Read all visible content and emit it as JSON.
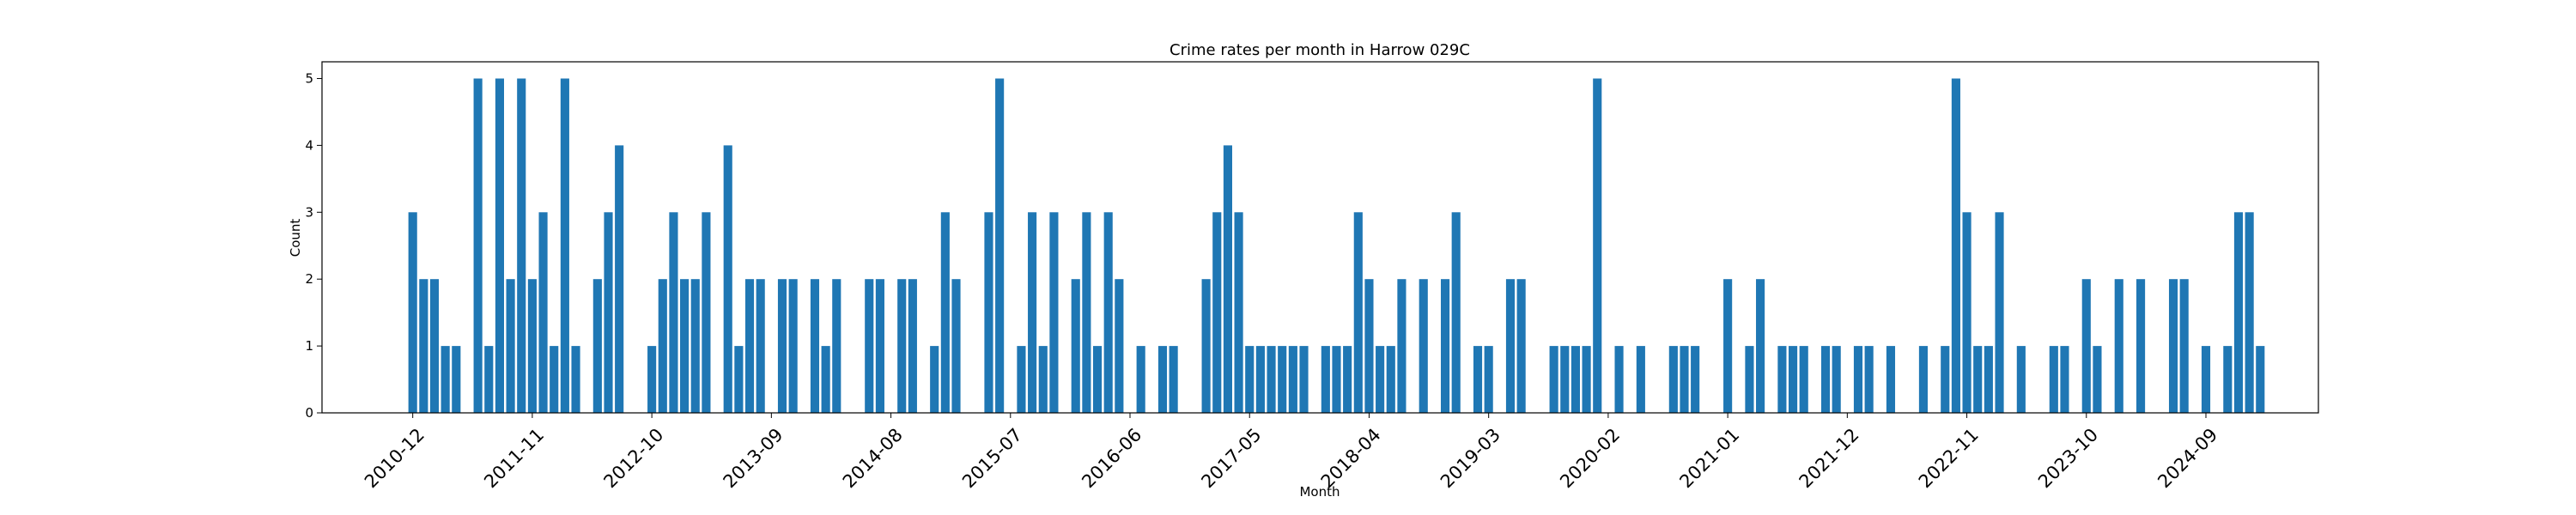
{
  "chart_data": {
    "type": "bar",
    "title": "Crime rates per month in Harrow 029C",
    "xlabel": "Month",
    "ylabel": "Count",
    "ylim": [
      0,
      5.25
    ],
    "yticks": [
      0,
      1,
      2,
      3,
      4,
      5
    ],
    "grid": false,
    "bar_color": "#1f77b4",
    "x_index_range": [
      -8.35,
      175.35
    ],
    "xtick_indices": [
      0,
      11,
      22,
      33,
      44,
      55,
      66,
      77,
      88,
      99,
      110,
      121,
      132,
      143,
      154,
      165
    ],
    "xtick_labels": [
      "2010-12",
      "2011-11",
      "2012-10",
      "2013-09",
      "2014-08",
      "2015-07",
      "2016-06",
      "2017-05",
      "2018-04",
      "2019-03",
      "2020-02",
      "2021-01",
      "2021-12",
      "2022-11",
      "2023-10",
      "2024-09"
    ],
    "bars": [
      {
        "i": 0,
        "v": 3
      },
      {
        "i": 1,
        "v": 2
      },
      {
        "i": 2,
        "v": 2
      },
      {
        "i": 3,
        "v": 1
      },
      {
        "i": 4,
        "v": 1
      },
      {
        "i": 6,
        "v": 5
      },
      {
        "i": 7,
        "v": 1
      },
      {
        "i": 8,
        "v": 5
      },
      {
        "i": 9,
        "v": 2
      },
      {
        "i": 10,
        "v": 5
      },
      {
        "i": 11,
        "v": 2
      },
      {
        "i": 12,
        "v": 3
      },
      {
        "i": 13,
        "v": 1
      },
      {
        "i": 14,
        "v": 5
      },
      {
        "i": 15,
        "v": 1
      },
      {
        "i": 17,
        "v": 2
      },
      {
        "i": 18,
        "v": 3
      },
      {
        "i": 19,
        "v": 4
      },
      {
        "i": 22,
        "v": 1
      },
      {
        "i": 23,
        "v": 2
      },
      {
        "i": 24,
        "v": 3
      },
      {
        "i": 25,
        "v": 2
      },
      {
        "i": 26,
        "v": 2
      },
      {
        "i": 27,
        "v": 3
      },
      {
        "i": 29,
        "v": 4
      },
      {
        "i": 30,
        "v": 1
      },
      {
        "i": 31,
        "v": 2
      },
      {
        "i": 32,
        "v": 2
      },
      {
        "i": 34,
        "v": 2
      },
      {
        "i": 35,
        "v": 2
      },
      {
        "i": 37,
        "v": 2
      },
      {
        "i": 38,
        "v": 1
      },
      {
        "i": 39,
        "v": 2
      },
      {
        "i": 42,
        "v": 2
      },
      {
        "i": 43,
        "v": 2
      },
      {
        "i": 45,
        "v": 2
      },
      {
        "i": 46,
        "v": 2
      },
      {
        "i": 48,
        "v": 1
      },
      {
        "i": 49,
        "v": 3
      },
      {
        "i": 50,
        "v": 2
      },
      {
        "i": 53,
        "v": 3
      },
      {
        "i": 54,
        "v": 5
      },
      {
        "i": 56,
        "v": 1
      },
      {
        "i": 57,
        "v": 3
      },
      {
        "i": 58,
        "v": 1
      },
      {
        "i": 59,
        "v": 3
      },
      {
        "i": 61,
        "v": 2
      },
      {
        "i": 62,
        "v": 3
      },
      {
        "i": 63,
        "v": 1
      },
      {
        "i": 64,
        "v": 3
      },
      {
        "i": 65,
        "v": 2
      },
      {
        "i": 67,
        "v": 1
      },
      {
        "i": 69,
        "v": 1
      },
      {
        "i": 70,
        "v": 1
      },
      {
        "i": 73,
        "v": 2
      },
      {
        "i": 74,
        "v": 3
      },
      {
        "i": 75,
        "v": 4
      },
      {
        "i": 76,
        "v": 3
      },
      {
        "i": 77,
        "v": 1
      },
      {
        "i": 78,
        "v": 1
      },
      {
        "i": 79,
        "v": 1
      },
      {
        "i": 80,
        "v": 1
      },
      {
        "i": 81,
        "v": 1
      },
      {
        "i": 82,
        "v": 1
      },
      {
        "i": 84,
        "v": 1
      },
      {
        "i": 85,
        "v": 1
      },
      {
        "i": 86,
        "v": 1
      },
      {
        "i": 87,
        "v": 3
      },
      {
        "i": 88,
        "v": 2
      },
      {
        "i": 89,
        "v": 1
      },
      {
        "i": 90,
        "v": 1
      },
      {
        "i": 91,
        "v": 2
      },
      {
        "i": 93,
        "v": 2
      },
      {
        "i": 95,
        "v": 2
      },
      {
        "i": 96,
        "v": 3
      },
      {
        "i": 98,
        "v": 1
      },
      {
        "i": 99,
        "v": 1
      },
      {
        "i": 101,
        "v": 2
      },
      {
        "i": 102,
        "v": 2
      },
      {
        "i": 105,
        "v": 1
      },
      {
        "i": 106,
        "v": 1
      },
      {
        "i": 107,
        "v": 1
      },
      {
        "i": 108,
        "v": 1
      },
      {
        "i": 109,
        "v": 5
      },
      {
        "i": 111,
        "v": 1
      },
      {
        "i": 113,
        "v": 1
      },
      {
        "i": 116,
        "v": 1
      },
      {
        "i": 117,
        "v": 1
      },
      {
        "i": 118,
        "v": 1
      },
      {
        "i": 121,
        "v": 2
      },
      {
        "i": 123,
        "v": 1
      },
      {
        "i": 124,
        "v": 2
      },
      {
        "i": 126,
        "v": 1
      },
      {
        "i": 127,
        "v": 1
      },
      {
        "i": 128,
        "v": 1
      },
      {
        "i": 130,
        "v": 1
      },
      {
        "i": 131,
        "v": 1
      },
      {
        "i": 133,
        "v": 1
      },
      {
        "i": 134,
        "v": 1
      },
      {
        "i": 136,
        "v": 1
      },
      {
        "i": 139,
        "v": 1
      },
      {
        "i": 141,
        "v": 1
      },
      {
        "i": 142,
        "v": 5
      },
      {
        "i": 143,
        "v": 3
      },
      {
        "i": 144,
        "v": 1
      },
      {
        "i": 145,
        "v": 1
      },
      {
        "i": 146,
        "v": 3
      },
      {
        "i": 148,
        "v": 1
      },
      {
        "i": 151,
        "v": 1
      },
      {
        "i": 152,
        "v": 1
      },
      {
        "i": 154,
        "v": 2
      },
      {
        "i": 155,
        "v": 1
      },
      {
        "i": 157,
        "v": 2
      },
      {
        "i": 159,
        "v": 2
      },
      {
        "i": 162,
        "v": 2
      },
      {
        "i": 163,
        "v": 2
      },
      {
        "i": 165,
        "v": 1
      },
      {
        "i": 167,
        "v": 1
      },
      {
        "i": 168,
        "v": 3
      },
      {
        "i": 169,
        "v": 3
      },
      {
        "i": 170,
        "v": 1
      }
    ]
  }
}
